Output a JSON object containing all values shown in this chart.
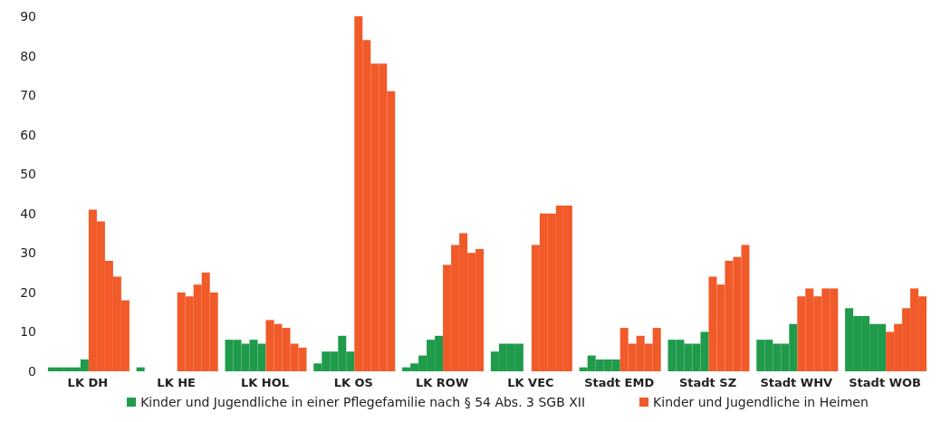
{
  "chart_data": {
    "type": "bar",
    "categories": [
      "LK DH",
      "LK HE",
      "LK HOL",
      "LK OS",
      "LK ROW",
      "LK VEC",
      "Stadt EMD",
      "Stadt SZ",
      "Stadt WHV",
      "Stadt WOB"
    ],
    "series": [
      {
        "name": "Kinder und Jugendliche in einer Pflegefamilie nach § 54 Abs. 3 SGB XII",
        "color": "#1f9b4b",
        "values": [
          1,
          1,
          8,
          2,
          1,
          5,
          1,
          8,
          8,
          16
        ]
      },
      {
        "color": "#1f9b4b",
        "values": [
          1,
          0,
          8,
          5,
          2,
          7,
          4,
          8,
          8,
          14
        ]
      },
      {
        "color": "#1f9b4b",
        "values": [
          1,
          0,
          7,
          5,
          4,
          7,
          3,
          7,
          7,
          14
        ]
      },
      {
        "color": "#1f9b4b",
        "values": [
          1,
          0,
          8,
          9,
          8,
          7,
          3,
          7,
          7,
          12
        ]
      },
      {
        "color": "#1f9b4b",
        "values": [
          3,
          0,
          7,
          5,
          9,
          null,
          3,
          10,
          12,
          12
        ]
      },
      {
        "name": "Kinder und Jugendliche in Heimen",
        "color": "#f15a29",
        "values": [
          41,
          20,
          13,
          90,
          27,
          32,
          11,
          24,
          19,
          10
        ]
      },
      {
        "color": "#f15a29",
        "values": [
          38,
          19,
          12,
          84,
          32,
          40,
          7,
          22,
          21,
          12
        ]
      },
      {
        "color": "#f15a29",
        "values": [
          28,
          22,
          11,
          78,
          35,
          40,
          9,
          28,
          19,
          16
        ]
      },
      {
        "color": "#f15a29",
        "values": [
          24,
          25,
          7,
          78,
          30,
          42,
          7,
          29,
          21,
          21
        ]
      },
      {
        "color": "#f15a29",
        "values": [
          18,
          20,
          6,
          71,
          31,
          42,
          11,
          32,
          21,
          19
        ]
      }
    ],
    "ylim": [
      0,
      90
    ],
    "yticks": [
      0,
      10,
      20,
      30,
      40,
      50,
      60,
      70,
      80,
      90
    ],
    "grid": false,
    "legend": "bottom"
  }
}
